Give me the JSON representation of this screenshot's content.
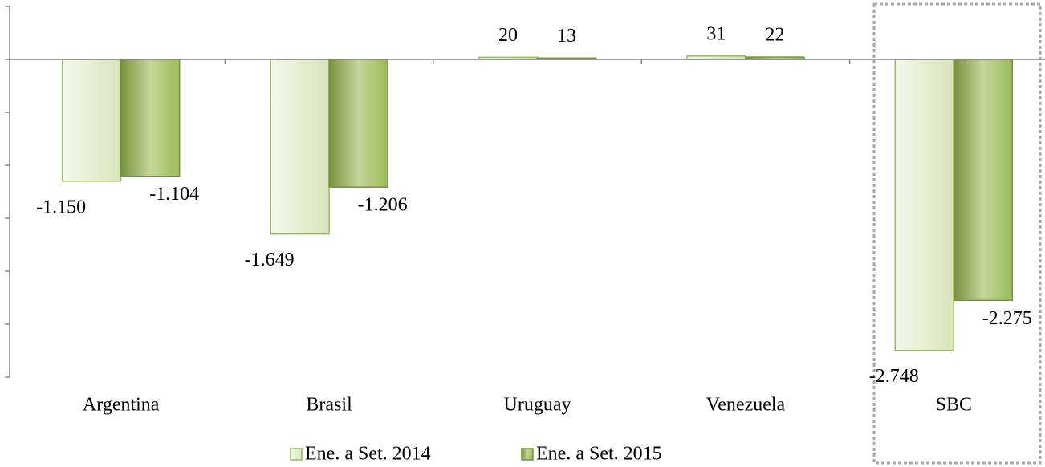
{
  "chart_data": {
    "type": "bar",
    "categories": [
      "Argentina",
      "Brasil",
      "Uruguay",
      "Venezuela",
      "SBC"
    ],
    "series": [
      {
        "name": "Ene. a Set. 2014",
        "color": "#ebf1de",
        "values": [
          -1150,
          -1649,
          20,
          31,
          -2748
        ],
        "value_labels": [
          "-1.150",
          "-1.649",
          "20",
          "31",
          "-2.748"
        ]
      },
      {
        "name": "Ene. a Set. 2015",
        "color": "#9bbb59",
        "values": [
          -1104,
          -1206,
          13,
          22,
          -2275
        ],
        "value_labels": [
          "-1.104",
          "-1.206",
          "13",
          "22",
          "-2.275"
        ]
      }
    ],
    "ylim": [
      -3000,
      500
    ],
    "yticks": [
      500,
      0,
      -500,
      -1000,
      -1500,
      -2000,
      -2500,
      -3000
    ],
    "legend": "bottom"
  }
}
